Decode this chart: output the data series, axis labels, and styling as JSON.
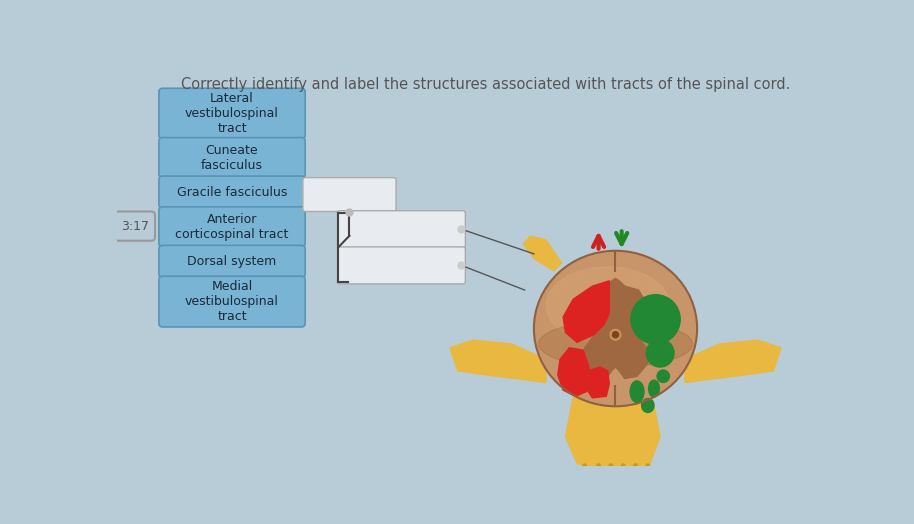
{
  "title": "Correctly identify and label the structures associated with tracts of the spinal cord.",
  "title_fontsize": 10.5,
  "title_color": "#555555",
  "bg_color": "#b8ccd8",
  "timer_text": "3:17",
  "labels": [
    "Lateral\nvestibulospinal\ntract",
    "Cuneate\nfasciculus",
    "Gracile fasciculus",
    "Anterior\ncorticospinal tract",
    "Dorsal system",
    "Medial\nvestibulospinal\ntract"
  ],
  "label_box_color": "#7ab4d4",
  "label_box_edge": "#5a94b4",
  "label_text_color": "#1a2a3a",
  "answer_box_color": "#e8ecf0",
  "answer_box_edge": "#aaaaaa",
  "arrow_up_color": "#cc2222",
  "arrow_down_color": "#228822",
  "cord_base": "#c8956a",
  "cord_mid": "#b07040",
  "cord_dark": "#9a6030",
  "cord_inner": "#a06840",
  "red_color": "#dd2222",
  "green_color": "#228833",
  "nerve_yellow": "#e8b840",
  "nerve_yellow_dark": "#c89820"
}
